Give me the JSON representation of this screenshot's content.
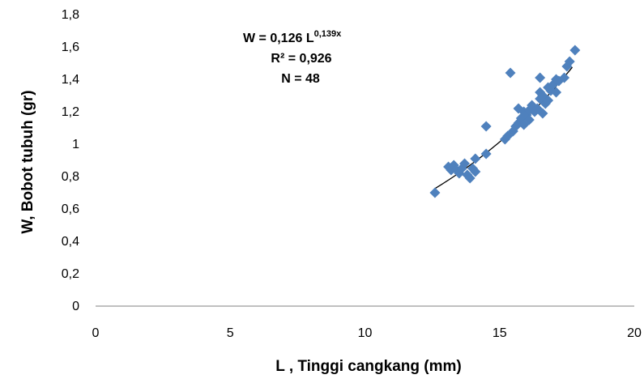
{
  "chart_data": {
    "type": "scatter",
    "xlabel": "L , Tinggi cangkang (mm)",
    "ylabel": "W, Bobot tubuh (gr)",
    "xlim": [
      0,
      20
    ],
    "ylim": [
      0,
      1.8
    ],
    "x_ticks": [
      "0",
      "5",
      "10",
      "15",
      "20"
    ],
    "y_ticks": [
      "0",
      "0,2",
      "0,4",
      "0,6",
      "0,8",
      "1",
      "1,2",
      "1,4",
      "1,6",
      "1,8"
    ],
    "grid": false,
    "marker_color": "#4f81bd",
    "trendline_color": "#000000",
    "annotation": {
      "equation_main": "W = 0,126 L",
      "equation_exponent": "0,139x",
      "r_squared": "R² = 0,926",
      "n": "N = 48"
    },
    "trendline": {
      "type": "exponential",
      "a": 0.126,
      "b": 0.139,
      "x_range": [
        12.6,
        17.7
      ]
    },
    "series": [
      {
        "points": [
          [
            12.6,
            0.7
          ],
          [
            13.1,
            0.86
          ],
          [
            13.2,
            0.84
          ],
          [
            13.3,
            0.87
          ],
          [
            13.4,
            0.84
          ],
          [
            13.5,
            0.82
          ],
          [
            13.6,
            0.85
          ],
          [
            13.7,
            0.88
          ],
          [
            13.8,
            0.81
          ],
          [
            13.9,
            0.79
          ],
          [
            14.0,
            0.85
          ],
          [
            14.1,
            0.83
          ],
          [
            14.1,
            0.91
          ],
          [
            14.5,
            1.11
          ],
          [
            14.5,
            0.94
          ],
          [
            15.2,
            1.03
          ],
          [
            15.3,
            1.05
          ],
          [
            15.4,
            1.44
          ],
          [
            15.5,
            1.08
          ],
          [
            15.6,
            1.11
          ],
          [
            15.7,
            1.13
          ],
          [
            15.7,
            1.22
          ],
          [
            15.8,
            1.16
          ],
          [
            15.9,
            1.12
          ],
          [
            15.9,
            1.2
          ],
          [
            16.0,
            1.18
          ],
          [
            16.1,
            1.21
          ],
          [
            16.1,
            1.15
          ],
          [
            16.2,
            1.24
          ],
          [
            16.3,
            1.2
          ],
          [
            16.4,
            1.22
          ],
          [
            16.5,
            1.41
          ],
          [
            16.5,
            1.28
          ],
          [
            16.5,
            1.32
          ],
          [
            16.6,
            1.19
          ],
          [
            16.6,
            1.3
          ],
          [
            16.7,
            1.25
          ],
          [
            16.8,
            1.27
          ],
          [
            16.8,
            1.35
          ],
          [
            16.9,
            1.33
          ],
          [
            17.0,
            1.37
          ],
          [
            17.1,
            1.4
          ],
          [
            17.1,
            1.32
          ],
          [
            17.2,
            1.39
          ],
          [
            17.4,
            1.41
          ],
          [
            17.5,
            1.48
          ],
          [
            17.6,
            1.51
          ],
          [
            17.8,
            1.58
          ]
        ]
      }
    ]
  }
}
